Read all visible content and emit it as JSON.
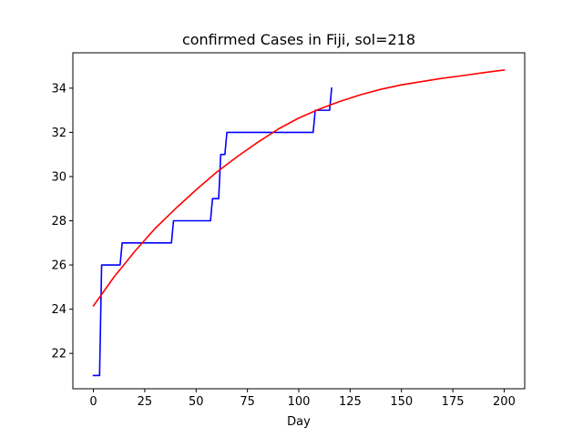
{
  "chart_data": {
    "type": "line",
    "title": "confirmed Cases in Fiji, sol=218",
    "xlabel": "Day",
    "ylabel": "",
    "xlim": [
      -10,
      210
    ],
    "ylim": [
      20.4,
      35.6
    ],
    "xticks": [
      0,
      25,
      50,
      75,
      100,
      125,
      150,
      175,
      200
    ],
    "yticks": [
      22,
      24,
      26,
      28,
      30,
      32,
      34
    ],
    "grid": false,
    "legend": "none",
    "series": [
      {
        "color": "#0000ff",
        "style": "step",
        "x": [
          0,
          3,
          4,
          13,
          14,
          38,
          39,
          57,
          58,
          61,
          62,
          64,
          65,
          107,
          108,
          115,
          116
        ],
        "y": [
          21,
          21,
          26,
          26,
          27,
          27,
          28,
          28,
          29,
          29,
          31,
          31,
          32,
          32,
          33,
          33,
          34
        ]
      },
      {
        "color": "#ff0000",
        "style": "smooth",
        "x": [
          0,
          10,
          20,
          30,
          40,
          50,
          60,
          70,
          80,
          90,
          100,
          110,
          120,
          130,
          140,
          150,
          160,
          170,
          180,
          190,
          200
        ],
        "y": [
          24.15,
          25.45,
          26.6,
          27.65,
          28.55,
          29.4,
          30.2,
          30.9,
          31.55,
          32.15,
          32.65,
          33.05,
          33.4,
          33.7,
          33.95,
          34.15,
          34.3,
          34.45,
          34.57,
          34.7,
          34.82
        ]
      }
    ]
  }
}
